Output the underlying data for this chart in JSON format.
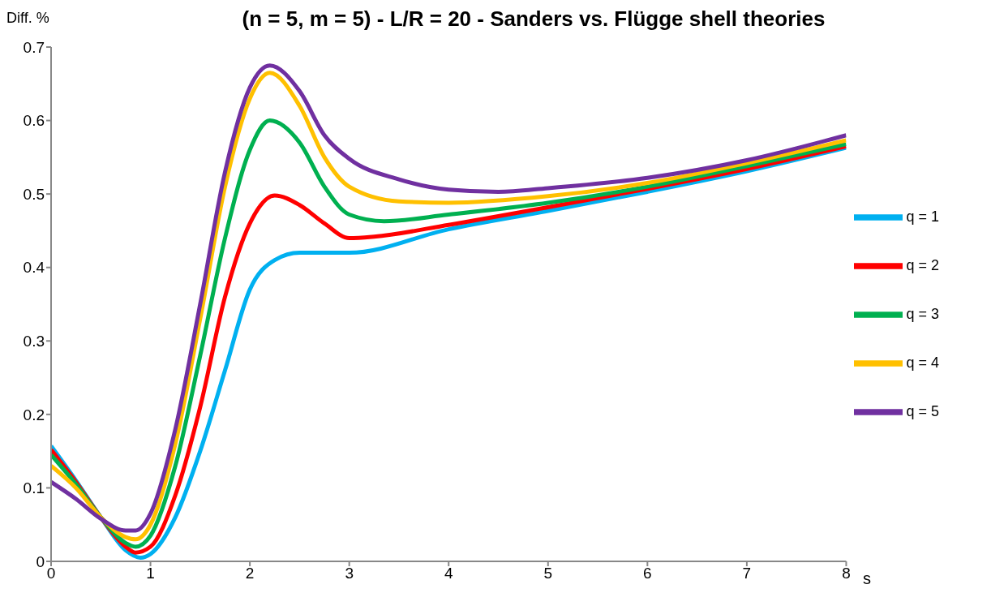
{
  "chart_data": {
    "type": "line",
    "title": "(n = 5, m = 5) - L/R = 20 - Sanders vs. Flügge shell theories",
    "xlabel": "s",
    "ylabel": "Diff. %",
    "xlim": [
      0,
      8
    ],
    "xticks": [
      0,
      1,
      2,
      3,
      4,
      5,
      6,
      7,
      8
    ],
    "ylim": [
      0,
      0.7
    ],
    "yticks": [
      0,
      0.1,
      0.2,
      0.3,
      0.4,
      0.5,
      0.6,
      0.7
    ],
    "grid": false,
    "legend": "right",
    "marker": "none",
    "line_style": "solid",
    "series": [
      {
        "name": "q = 1",
        "color": "#00b0f0",
        "x": [
          0,
          0.25,
          0.5,
          0.75,
          0.9,
          1,
          1.25,
          1.5,
          1.75,
          2,
          2.25,
          2.5,
          2.75,
          3,
          4,
          5,
          6,
          7,
          8
        ],
        "values": [
          0.157,
          0.11,
          0.06,
          0.015,
          0.005,
          0.01,
          0.06,
          0.15,
          0.26,
          0.37,
          0.41,
          0.42,
          0.42,
          0.42,
          0.452,
          0.477,
          0.503,
          0.531,
          0.563
        ]
      },
      {
        "name": "q = 2",
        "color": "#ff0000",
        "x": [
          0,
          0.25,
          0.5,
          0.75,
          0.85,
          1,
          1.25,
          1.5,
          1.75,
          2,
          2.25,
          2.5,
          2.75,
          3,
          3.25,
          4,
          5,
          6,
          7,
          8
        ],
        "values": [
          0.152,
          0.108,
          0.06,
          0.02,
          0.012,
          0.02,
          0.09,
          0.21,
          0.36,
          0.46,
          0.498,
          0.485,
          0.46,
          0.44,
          0.442,
          0.458,
          0.482,
          0.507,
          0.534,
          0.565
        ]
      },
      {
        "name": "q = 3",
        "color": "#00b050",
        "x": [
          0,
          0.25,
          0.5,
          0.75,
          0.85,
          1,
          1.25,
          1.5,
          1.75,
          2,
          2.2,
          2.5,
          2.75,
          3,
          3.35,
          4,
          5,
          6,
          7,
          8
        ],
        "values": [
          0.145,
          0.105,
          0.06,
          0.025,
          0.02,
          0.035,
          0.13,
          0.28,
          0.44,
          0.56,
          0.6,
          0.57,
          0.51,
          0.472,
          0.463,
          0.472,
          0.488,
          0.51,
          0.538,
          0.568
        ]
      },
      {
        "name": "q = 4",
        "color": "#ffc000",
        "x": [
          0,
          0.25,
          0.5,
          0.75,
          0.85,
          1,
          1.25,
          1.5,
          1.75,
          2,
          2.2,
          2.5,
          2.75,
          3,
          3.5,
          4,
          5,
          6,
          7,
          8
        ],
        "values": [
          0.13,
          0.1,
          0.06,
          0.033,
          0.03,
          0.05,
          0.16,
          0.33,
          0.51,
          0.63,
          0.665,
          0.62,
          0.55,
          0.51,
          0.49,
          0.488,
          0.497,
          0.515,
          0.542,
          0.573
        ]
      },
      {
        "name": "q = 5",
        "color": "#7030a0",
        "x": [
          0,
          0.25,
          0.5,
          0.75,
          0.85,
          1,
          1.25,
          1.5,
          1.75,
          2,
          2.2,
          2.5,
          2.75,
          3,
          3.5,
          4,
          4.5,
          5,
          6,
          7,
          8
        ],
        "values": [
          0.108,
          0.085,
          0.058,
          0.042,
          0.042,
          0.065,
          0.18,
          0.35,
          0.53,
          0.645,
          0.675,
          0.64,
          0.58,
          0.548,
          0.52,
          0.506,
          0.503,
          0.508,
          0.522,
          0.546,
          0.58
        ]
      }
    ]
  }
}
